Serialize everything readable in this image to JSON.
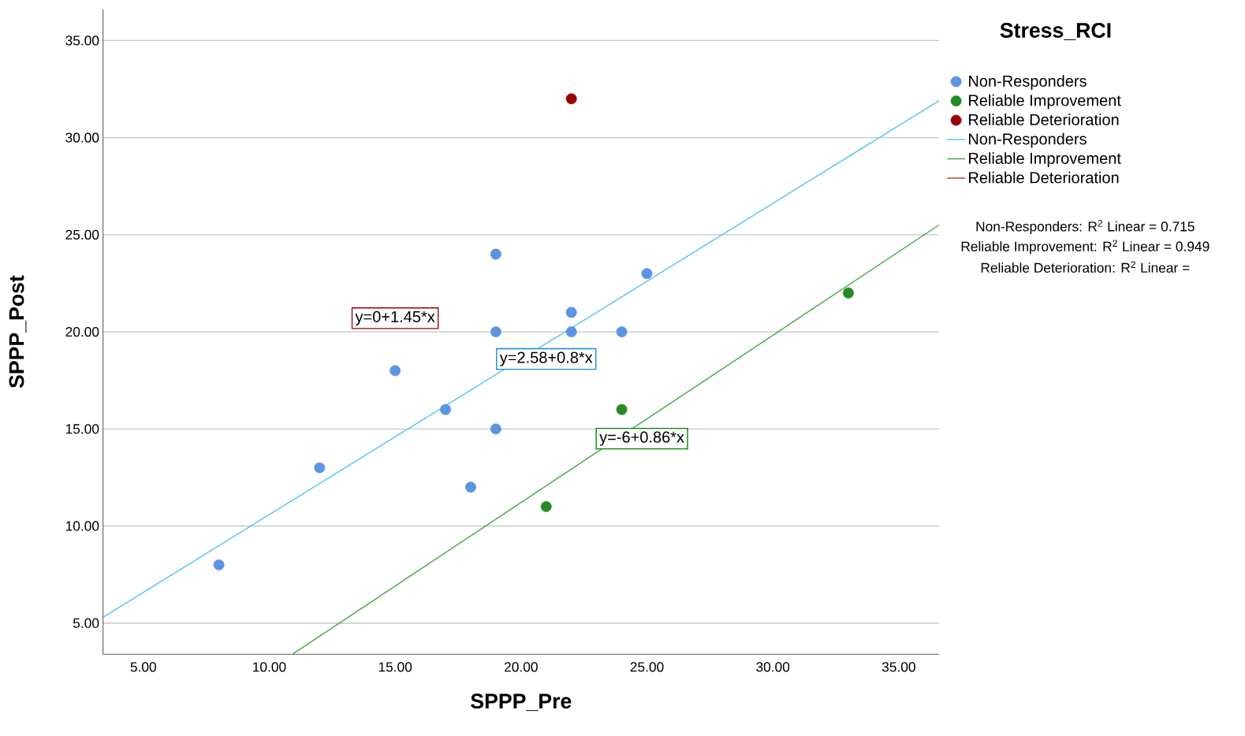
{
  "chart_data": {
    "type": "scatter",
    "xlabel": "SPPP_Pre",
    "ylabel": "SPPP_Post",
    "legend_title": "Stress_RCI",
    "xlim": [
      3.4,
      36.6
    ],
    "ylim": [
      3.4,
      36.6
    ],
    "xticks": [
      {
        "value": 5,
        "label": "5.00"
      },
      {
        "value": 10,
        "label": "10.00"
      },
      {
        "value": 15,
        "label": "15.00"
      },
      {
        "value": 20,
        "label": "20.00"
      },
      {
        "value": 25,
        "label": "25.00"
      },
      {
        "value": 30,
        "label": "30.00"
      },
      {
        "value": 35,
        "label": "35.00"
      }
    ],
    "yticks": [
      {
        "value": 5,
        "label": "5.00"
      },
      {
        "value": 10,
        "label": "10.00"
      },
      {
        "value": 15,
        "label": "15.00"
      },
      {
        "value": 20,
        "label": "20.00"
      },
      {
        "value": 25,
        "label": "25.00"
      },
      {
        "value": 30,
        "label": "30.00"
      },
      {
        "value": 35,
        "label": "35.00"
      }
    ],
    "grid": "y",
    "legend": "right",
    "line_style": "solid",
    "series": [
      {
        "name": "Non-Responders",
        "marker": "circle",
        "color": "#5b94e0",
        "x": [
          8,
          12,
          15,
          17,
          18,
          19,
          19,
          19,
          22,
          22,
          24,
          25
        ],
        "values": [
          8,
          13,
          18,
          16,
          12,
          15,
          20,
          24,
          20,
          21,
          20,
          23
        ]
      },
      {
        "name": "Reliable Improvement",
        "marker": "circle",
        "color": "#268a26",
        "x": [
          21,
          24,
          33
        ],
        "values": [
          11,
          16,
          22
        ]
      },
      {
        "name": "Reliable Deterioration",
        "marker": "circle",
        "color": "#990000",
        "x": [
          22
        ],
        "values": [
          32
        ]
      },
      {
        "name": "Non-Responders",
        "type": "line",
        "marker": "none",
        "color": "#5bc4f5",
        "x": [
          3.4,
          36.6
        ],
        "values": [
          5.3,
          31.9
        ]
      },
      {
        "name": "Reliable Improvement",
        "type": "line",
        "marker": "none",
        "color": "#4aa84a",
        "x": [
          10.95,
          36.6
        ],
        "values": [
          3.42,
          25.5
        ]
      },
      {
        "name": "Reliable Deterioration",
        "type": "line",
        "marker": "none",
        "color": "#c0392b"
      }
    ],
    "annotations": [
      "y=0+1.45*x",
      "y=2.58+0.8*x",
      "y=-6+0.86*x",
      "Non-Responders: R$^{2}$ Linear = 0.715",
      "Reliable Improvement: R$^{2}$ Linear = 0.949",
      "Reliable Deterioration: R$^{2}$ Linear ="
    ]
  }
}
